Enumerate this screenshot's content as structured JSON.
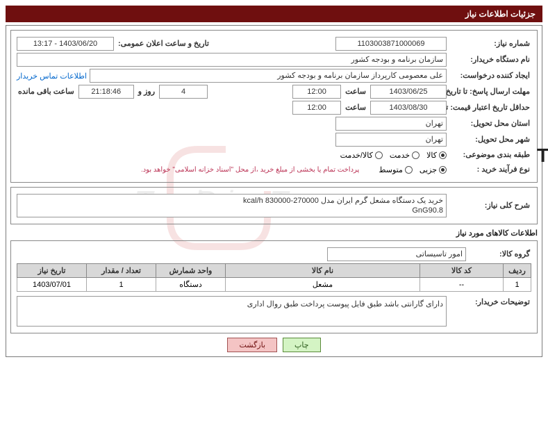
{
  "header": {
    "title": "جزئیات اطلاعات نیاز"
  },
  "fields": {
    "need_no_label": "شماره نیاز:",
    "need_no": "1103003871000069",
    "announce_label": "تاریخ و ساعت اعلان عمومی:",
    "announce_value": "1403/06/20 - 13:17",
    "buyer_org_label": "نام دستگاه خریدار:",
    "buyer_org": "سازمان برنامه و بودجه کشور",
    "requester_label": "ایجاد کننده درخواست:",
    "requester": "علی معصومی کارپرداز سازمان برنامه و بودجه کشور",
    "contact_link": "اطلاعات تماس خریدار",
    "deadline_label": "مهلت ارسال پاسخ:  تا تاریخ:",
    "deadline_date": "1403/06/25",
    "time_label": "ساعت",
    "deadline_time": "12:00",
    "days_left": "4",
    "days_word": "روز و",
    "countdown": "21:18:46",
    "remain_word": "ساعت باقی مانده",
    "validity_label": "حداقل تاریخ اعتبار قیمت:  تا تاریخ:",
    "validity_date": "1403/08/30",
    "validity_time": "12:00",
    "province_label": "استان محل تحویل:",
    "province": "تهران",
    "city_label": "شهر محل تحویل:",
    "city": "تهران",
    "category_label": "طبقه بندی موضوعی:",
    "proc_type_label": "نوع فرآیند خرید :",
    "note": "پرداخت تمام یا بخشی از مبلغ خرید ،از محل \"اسناد خزانه اسلامی\" خواهد بود.",
    "desc_label": "شرح کلی نیاز:",
    "desc_value": "خرید یک دستگاه مشعل گرم ایران مدل kcal/h 830000-270000\nGnG90.8",
    "items_title": "اطلاعات کالاهای مورد نیاز",
    "group_label": "گروه کالا:",
    "group_value": "امور تاسیساتی",
    "buyer_notes_label": "توضیحات خریدار:",
    "buyer_notes": "دارای گارانتی باشد طبق فایل پیوست پرداخت طبق روال اداری"
  },
  "radios": {
    "category": [
      {
        "label": "کالا",
        "checked": true
      },
      {
        "label": "خدمت",
        "checked": false
      },
      {
        "label": "کالا/خدمت",
        "checked": false
      }
    ],
    "proc": [
      {
        "label": "جزیی",
        "checked": true
      },
      {
        "label": "متوسط",
        "checked": false
      }
    ]
  },
  "table": {
    "headers": [
      "ردیف",
      "کد کالا",
      "نام کالا",
      "واحد شمارش",
      "تعداد / مقدار",
      "تاریخ نیاز"
    ],
    "row": {
      "idx": "1",
      "code": "--",
      "name": "مشعل",
      "unit": "دستگاه",
      "qty": "1",
      "date": "1403/07/01"
    }
  },
  "buttons": {
    "print": "چاپ",
    "back": "بازگشت"
  }
}
